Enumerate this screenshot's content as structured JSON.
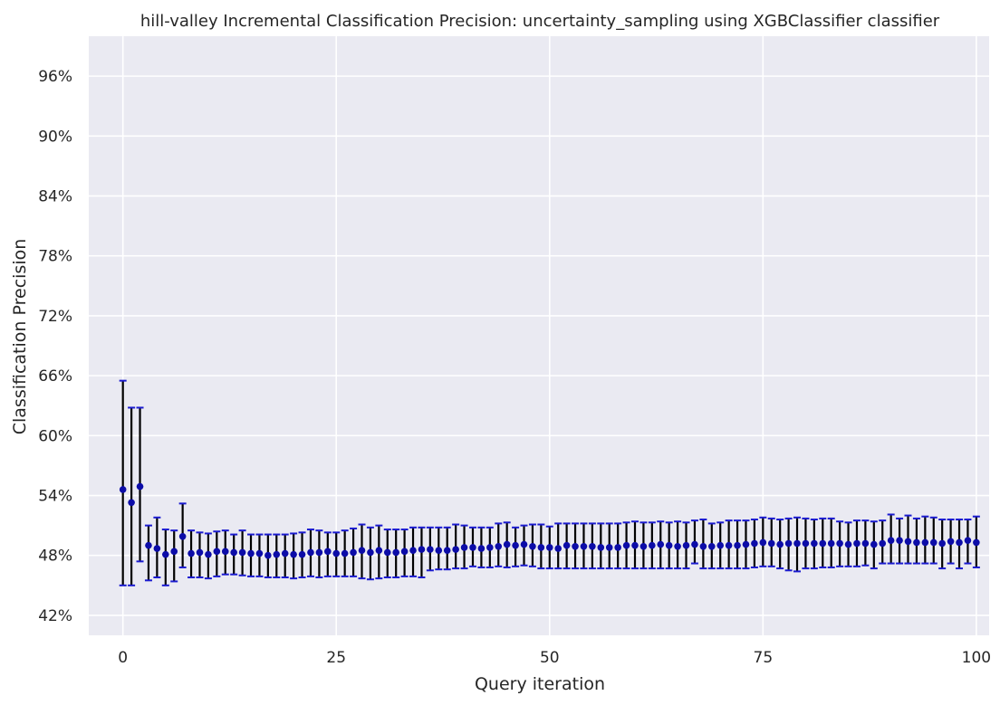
{
  "chart_data": {
    "type": "scatter",
    "title": "hill-valley Incremental Classification Precision: uncertainty_sampling using XGBClassifier classifier",
    "xlabel": "Query iteration",
    "ylabel": "Classification Precision",
    "xlim": [
      -4,
      101.5
    ],
    "ylim": [
      0.4,
      1.0
    ],
    "x_ticks": [
      0,
      25,
      50,
      75,
      100
    ],
    "y_ticks": [
      0.42,
      0.48,
      0.54,
      0.6,
      0.66,
      0.72,
      0.78,
      0.84,
      0.9,
      0.96
    ],
    "y_tick_labels": [
      "42%",
      "48%",
      "54%",
      "60%",
      "66%",
      "72%",
      "78%",
      "84%",
      "90%",
      "96%"
    ],
    "grid": true,
    "background": "#eaeaf2",
    "grid_color": "#ffffff",
    "point_color": "#0c0ca8",
    "errorbar_color": "#000000",
    "cap_color": "#1a1ad0",
    "series": [
      {
        "x": [
          0,
          1,
          2,
          3,
          4,
          5,
          6,
          7,
          8,
          9,
          10,
          11,
          12,
          13,
          14,
          15,
          16,
          17,
          18,
          19,
          20,
          21,
          22,
          23,
          24,
          25,
          26,
          27,
          28,
          29,
          30,
          31,
          32,
          33,
          34,
          35,
          36,
          37,
          38,
          39,
          40,
          41,
          42,
          43,
          44,
          45,
          46,
          47,
          48,
          49,
          50,
          51,
          52,
          53,
          54,
          55,
          56,
          57,
          58,
          59,
          60,
          61,
          62,
          63,
          64,
          65,
          66,
          67,
          68,
          69,
          70,
          71,
          72,
          73,
          74,
          75,
          76,
          77,
          78,
          79,
          80,
          81,
          82,
          83,
          84,
          85,
          86,
          87,
          88,
          89,
          90,
          91,
          92,
          93,
          94,
          95,
          96,
          97,
          98,
          99,
          100
        ],
        "y": [
          0.546,
          0.533,
          0.549,
          0.49,
          0.487,
          0.481,
          0.484,
          0.499,
          0.482,
          0.483,
          0.481,
          0.484,
          0.484,
          0.483,
          0.483,
          0.482,
          0.482,
          0.48,
          0.481,
          0.482,
          0.481,
          0.481,
          0.483,
          0.483,
          0.484,
          0.482,
          0.482,
          0.483,
          0.485,
          0.483,
          0.485,
          0.483,
          0.483,
          0.484,
          0.485,
          0.486,
          0.486,
          0.485,
          0.485,
          0.486,
          0.488,
          0.488,
          0.487,
          0.488,
          0.489,
          0.491,
          0.49,
          0.491,
          0.489,
          0.488,
          0.488,
          0.487,
          0.49,
          0.489,
          0.489,
          0.489,
          0.488,
          0.488,
          0.488,
          0.49,
          0.49,
          0.489,
          0.49,
          0.491,
          0.49,
          0.489,
          0.49,
          0.491,
          0.489,
          0.489,
          0.49,
          0.49,
          0.49,
          0.491,
          0.492,
          0.493,
          0.492,
          0.491,
          0.492,
          0.492,
          0.492,
          0.492,
          0.492,
          0.492,
          0.492,
          0.491,
          0.492,
          0.492,
          0.491,
          0.492,
          0.495,
          0.495,
          0.494,
          0.493,
          0.493,
          0.493,
          0.492,
          0.494,
          0.493,
          0.495,
          0.493
        ],
        "lower": [
          0.45,
          0.45,
          0.474,
          0.455,
          0.458,
          0.45,
          0.454,
          0.468,
          0.458,
          0.458,
          0.457,
          0.459,
          0.461,
          0.461,
          0.46,
          0.459,
          0.459,
          0.458,
          0.458,
          0.458,
          0.457,
          0.458,
          0.459,
          0.458,
          0.459,
          0.459,
          0.459,
          0.459,
          0.457,
          0.456,
          0.457,
          0.458,
          0.458,
          0.459,
          0.459,
          0.458,
          0.465,
          0.466,
          0.466,
          0.467,
          0.467,
          0.469,
          0.468,
          0.468,
          0.469,
          0.468,
          0.469,
          0.47,
          0.469,
          0.467,
          0.467,
          0.467,
          0.467,
          0.467,
          0.467,
          0.467,
          0.467,
          0.467,
          0.467,
          0.467,
          0.467,
          0.467,
          0.467,
          0.467,
          0.467,
          0.467,
          0.467,
          0.472,
          0.467,
          0.467,
          0.467,
          0.467,
          0.467,
          0.467,
          0.468,
          0.469,
          0.469,
          0.467,
          0.465,
          0.464,
          0.467,
          0.467,
          0.468,
          0.468,
          0.469,
          0.469,
          0.469,
          0.47,
          0.467,
          0.472,
          0.472,
          0.472,
          0.472,
          0.472,
          0.472,
          0.472,
          0.467,
          0.472,
          0.467,
          0.472,
          0.468
        ],
        "upper": [
          0.655,
          0.628,
          0.628,
          0.51,
          0.518,
          0.506,
          0.505,
          0.532,
          0.505,
          0.503,
          0.502,
          0.504,
          0.505,
          0.501,
          0.505,
          0.501,
          0.501,
          0.501,
          0.501,
          0.501,
          0.502,
          0.503,
          0.506,
          0.505,
          0.503,
          0.503,
          0.505,
          0.507,
          0.511,
          0.508,
          0.51,
          0.506,
          0.506,
          0.506,
          0.508,
          0.508,
          0.508,
          0.508,
          0.508,
          0.511,
          0.51,
          0.508,
          0.508,
          0.508,
          0.512,
          0.513,
          0.508,
          0.51,
          0.511,
          0.511,
          0.509,
          0.512,
          0.512,
          0.512,
          0.512,
          0.512,
          0.512,
          0.512,
          0.512,
          0.513,
          0.514,
          0.513,
          0.513,
          0.514,
          0.513,
          0.514,
          0.513,
          0.515,
          0.516,
          0.512,
          0.513,
          0.515,
          0.515,
          0.515,
          0.516,
          0.518,
          0.517,
          0.516,
          0.517,
          0.518,
          0.517,
          0.516,
          0.517,
          0.517,
          0.514,
          0.513,
          0.515,
          0.515,
          0.514,
          0.515,
          0.521,
          0.517,
          0.52,
          0.517,
          0.519,
          0.518,
          0.516,
          0.516,
          0.516,
          0.516,
          0.519
        ]
      }
    ]
  }
}
